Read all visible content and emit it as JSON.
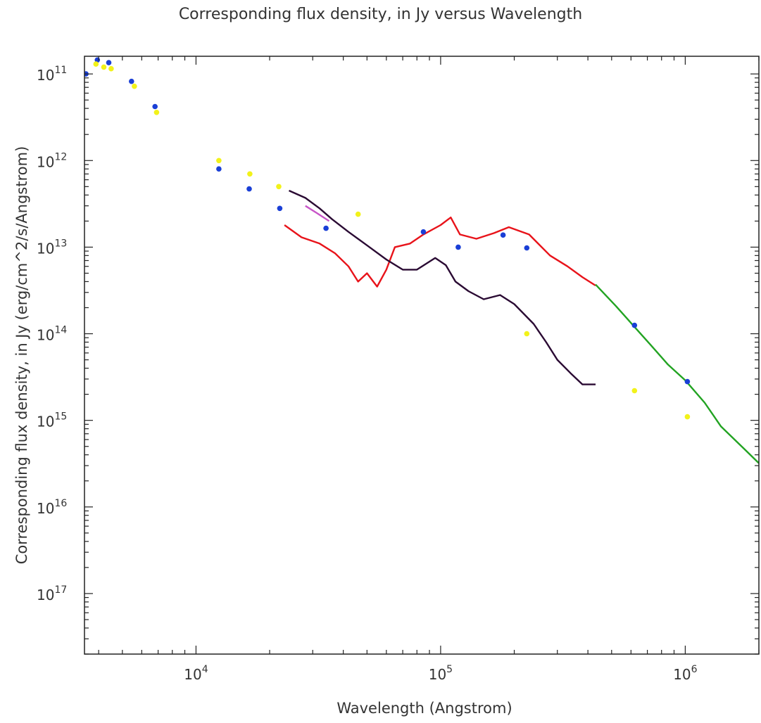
{
  "chart_data": {
    "type": "scatter",
    "title": "Corresponding flux density, in Jy versus Wavelength",
    "xlabel": "Wavelength (Angstrom)",
    "ylabel": "Corresponding flux density, in Jy (erg/cm^2/s/Angstrom)",
    "x_scale": "log",
    "y_scale": "log",
    "xlim": [
      3500,
      2000000
    ],
    "ylim": [
      2e-18,
      1.6e-11
    ],
    "grid": false,
    "x_ticks": [
      {
        "base": "10",
        "exp": "4",
        "value": 10000
      },
      {
        "base": "10",
        "exp": "5",
        "value": 100000
      },
      {
        "base": "10",
        "exp": "6",
        "value": 1000000
      }
    ],
    "y_ticks": [
      {
        "base": "10",
        "exp": "11",
        "value": 1e-11
      },
      {
        "base": "10",
        "exp": "12",
        "value": 1e-12
      },
      {
        "base": "10",
        "exp": "13",
        "value": 1e-13
      },
      {
        "base": "10",
        "exp": "14",
        "value": 1e-14
      },
      {
        "base": "10",
        "exp": "15",
        "value": 1e-15
      },
      {
        "base": "10",
        "exp": "16",
        "value": 1e-16
      },
      {
        "base": "10",
        "exp": "17",
        "value": 1e-17
      }
    ],
    "series": [
      {
        "color": "#1a3fd6",
        "marker": "point",
        "points": [
          [
            3550,
            1e-11
          ],
          [
            3950,
            1.45e-11
          ],
          [
            4400,
            1.35e-11
          ],
          [
            5450,
            8.2e-12
          ],
          [
            6800,
            4.2e-12
          ],
          [
            12400,
            8e-13
          ],
          [
            16500,
            4.7e-13
          ],
          [
            22000,
            2.8e-13
          ],
          [
            34000,
            1.65e-13
          ],
          [
            85000,
            1.5e-13
          ],
          [
            118000,
            1e-13
          ],
          [
            180000,
            1.38e-13
          ],
          [
            225000,
            9.8e-14
          ],
          [
            620000,
            1.25e-14
          ],
          [
            1020000,
            2.8e-15
          ]
        ]
      },
      {
        "color": "#f2f21a",
        "marker": "point",
        "points": [
          [
            3900,
            1.3e-11
          ],
          [
            4200,
            1.2e-11
          ],
          [
            4500,
            1.15e-11
          ],
          [
            5600,
            7.2e-12
          ],
          [
            6900,
            3.6e-12
          ],
          [
            12400,
            1e-12
          ],
          [
            16600,
            7e-13
          ],
          [
            21800,
            5e-13
          ],
          [
            46000,
            2.4e-13
          ],
          [
            225000,
            1e-14
          ],
          [
            620000,
            2.2e-15
          ],
          [
            1020000,
            1.1e-15
          ]
        ]
      },
      {
        "color": "#e8131a",
        "marker": "line",
        "points": [
          [
            23000,
            1.8e-13
          ],
          [
            27000,
            1.3e-13
          ],
          [
            32000,
            1.1e-13
          ],
          [
            37000,
            8.5e-14
          ],
          [
            42000,
            6e-14
          ],
          [
            46000,
            4e-14
          ],
          [
            50000,
            5e-14
          ],
          [
            55000,
            3.5e-14
          ],
          [
            60000,
            5.5e-14
          ],
          [
            65000,
            1e-13
          ],
          [
            75000,
            1.1e-13
          ],
          [
            85000,
            1.4e-13
          ],
          [
            100000,
            1.8e-13
          ],
          [
            110000,
            2.2e-13
          ],
          [
            120000,
            1.4e-13
          ],
          [
            140000,
            1.25e-13
          ],
          [
            165000,
            1.45e-13
          ],
          [
            190000,
            1.7e-13
          ],
          [
            230000,
            1.4e-13
          ],
          [
            280000,
            8e-14
          ],
          [
            330000,
            6e-14
          ],
          [
            380000,
            4.5e-14
          ],
          [
            430000,
            3.6e-14
          ]
        ]
      },
      {
        "color": "#c855c8",
        "marker": "line",
        "points": [
          [
            28000,
            3e-13
          ],
          [
            31000,
            2.5e-13
          ],
          [
            35000,
            2e-13
          ]
        ]
      },
      {
        "color": "#2a0a33",
        "marker": "line",
        "points": [
          [
            24000,
            4.5e-13
          ],
          [
            28000,
            3.7e-13
          ],
          [
            32000,
            2.8e-13
          ],
          [
            36000,
            2.1e-13
          ],
          [
            42000,
            1.5e-13
          ],
          [
            50000,
            1.05e-13
          ],
          [
            60000,
            7.2e-14
          ],
          [
            70000,
            5.5e-14
          ],
          [
            80000,
            5.5e-14
          ],
          [
            95000,
            7.5e-14
          ],
          [
            105000,
            6.2e-14
          ],
          [
            115000,
            4e-14
          ],
          [
            130000,
            3.1e-14
          ],
          [
            150000,
            2.5e-14
          ],
          [
            175000,
            2.8e-14
          ],
          [
            200000,
            2.2e-14
          ],
          [
            240000,
            1.3e-14
          ],
          [
            270000,
            8e-15
          ],
          [
            300000,
            5e-15
          ],
          [
            340000,
            3.5e-15
          ],
          [
            380000,
            2.6e-15
          ],
          [
            430000,
            2.6e-15
          ]
        ]
      },
      {
        "color": "#22a322",
        "marker": "line",
        "points": [
          [
            430000,
            3.7e-14
          ],
          [
            520000,
            2.1e-14
          ],
          [
            620000,
            1.2e-14
          ],
          [
            720000,
            7.5e-15
          ],
          [
            850000,
            4.4e-15
          ],
          [
            1000000,
            2.9e-15
          ],
          [
            1200000,
            1.6e-15
          ],
          [
            1400000,
            8.5e-16
          ],
          [
            1700000,
            5e-16
          ],
          [
            2000000,
            3.2e-16
          ]
        ]
      }
    ]
  }
}
